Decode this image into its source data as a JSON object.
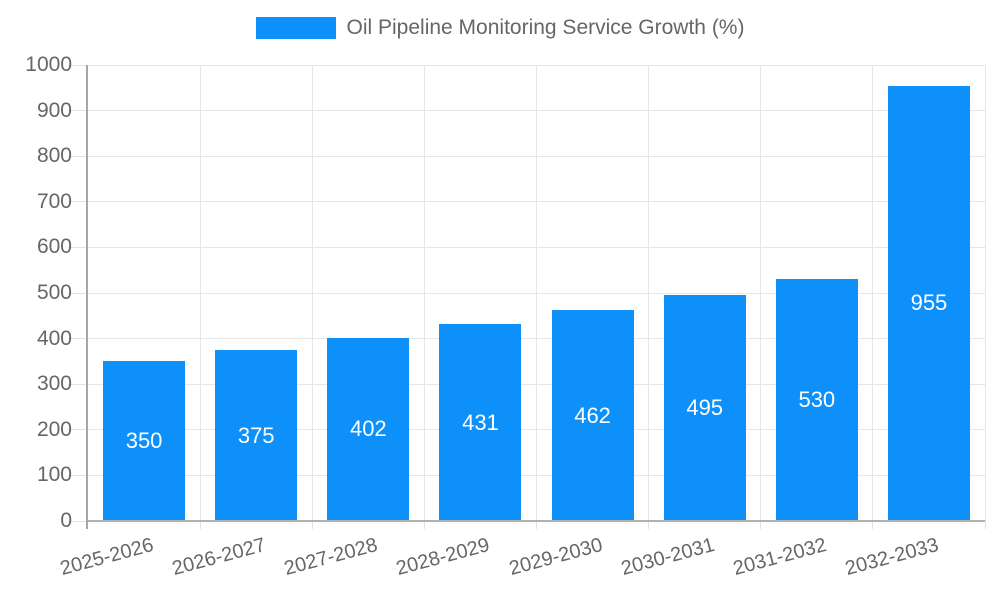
{
  "legend": {
    "label": "Oil Pipeline Monitoring Service Growth (%)",
    "swatch_color": "#0d90fa"
  },
  "chart_data": {
    "type": "bar",
    "title": "Oil Pipeline Monitoring Service Growth (%)",
    "categories": [
      "2025-2026",
      "2026-2027",
      "2027-2028",
      "2028-2029",
      "2029-2030",
      "2030-2031",
      "2031-2032",
      "2032-2033"
    ],
    "values": [
      350,
      375,
      402,
      431,
      462,
      495,
      530,
      955
    ],
    "series_name": "Oil Pipeline Monitoring Service Growth (%)",
    "xlabel": "",
    "ylabel": "",
    "ylim": [
      0,
      1000
    ],
    "yticks": [
      0,
      100,
      200,
      300,
      400,
      500,
      600,
      700,
      800,
      900,
      1000
    ],
    "grid": true,
    "legend_position": "top-center",
    "value_label_position": "inside-center",
    "x_label_rotation_deg": -15,
    "colors": {
      "bar": "#0d90fa",
      "grid": "#e6e6e6",
      "axis_line": "#b0b0b0",
      "tick_text": "#666666",
      "value_label": "#ffffff",
      "background": "#ffffff"
    }
  }
}
